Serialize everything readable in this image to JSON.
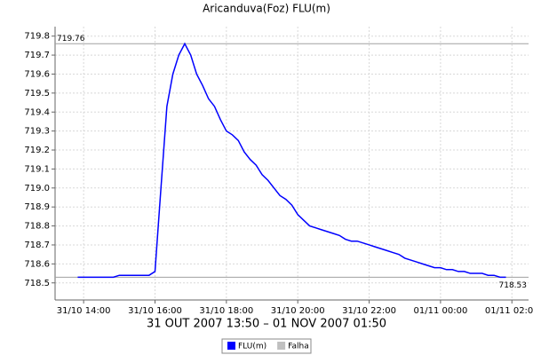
{
  "chart_data": {
    "type": "line",
    "title": "Aricanduva(Foz) FLU(m)",
    "x_label": "31 OUT 2007 13:50 – 01 NOV 2007 01:50",
    "x": [
      "2007-10-31T13:50",
      "2007-10-31T14:00",
      "2007-10-31T14:10",
      "2007-10-31T14:20",
      "2007-10-31T14:30",
      "2007-10-31T14:40",
      "2007-10-31T14:50",
      "2007-10-31T15:00",
      "2007-10-31T15:10",
      "2007-10-31T15:20",
      "2007-10-31T15:30",
      "2007-10-31T15:40",
      "2007-10-31T15:50",
      "2007-10-31T16:00",
      "2007-10-31T16:10",
      "2007-10-31T16:20",
      "2007-10-31T16:30",
      "2007-10-31T16:40",
      "2007-10-31T16:50",
      "2007-10-31T17:00",
      "2007-10-31T17:10",
      "2007-10-31T17:20",
      "2007-10-31T17:30",
      "2007-10-31T17:40",
      "2007-10-31T17:50",
      "2007-10-31T18:00",
      "2007-10-31T18:10",
      "2007-10-31T18:20",
      "2007-10-31T18:30",
      "2007-10-31T18:40",
      "2007-10-31T18:50",
      "2007-10-31T19:00",
      "2007-10-31T19:10",
      "2007-10-31T19:20",
      "2007-10-31T19:30",
      "2007-10-31T19:40",
      "2007-10-31T19:50",
      "2007-10-31T20:00",
      "2007-10-31T20:10",
      "2007-10-31T20:20",
      "2007-10-31T20:30",
      "2007-10-31T20:40",
      "2007-10-31T20:50",
      "2007-10-31T21:00",
      "2007-10-31T21:10",
      "2007-10-31T21:20",
      "2007-10-31T21:30",
      "2007-10-31T21:40",
      "2007-10-31T21:50",
      "2007-10-31T22:00",
      "2007-10-31T22:10",
      "2007-10-31T22:20",
      "2007-10-31T22:30",
      "2007-10-31T22:40",
      "2007-10-31T22:50",
      "2007-10-31T23:00",
      "2007-10-31T23:10",
      "2007-10-31T23:20",
      "2007-10-31T23:30",
      "2007-10-31T23:40",
      "2007-10-31T23:50",
      "2007-11-01T00:00",
      "2007-11-01T00:10",
      "2007-11-01T00:20",
      "2007-11-01T00:30",
      "2007-11-01T00:40",
      "2007-11-01T00:50",
      "2007-11-01T01:00",
      "2007-11-01T01:10",
      "2007-11-01T01:20",
      "2007-11-01T01:30",
      "2007-11-01T01:40",
      "2007-11-01T01:50"
    ],
    "series": [
      {
        "name": "FLU(m)",
        "color": "#0000ff",
        "values": [
          718.53,
          718.53,
          718.53,
          718.53,
          718.53,
          718.53,
          718.53,
          718.54,
          718.54,
          718.54,
          718.54,
          718.54,
          718.54,
          718.56,
          719.0,
          719.43,
          719.6,
          719.7,
          719.76,
          719.7,
          719.6,
          719.54,
          719.47,
          719.43,
          719.36,
          719.3,
          719.28,
          719.25,
          719.19,
          719.15,
          719.12,
          719.07,
          719.04,
          719.0,
          718.96,
          718.94,
          718.91,
          718.86,
          718.83,
          718.8,
          718.79,
          718.78,
          718.77,
          718.76,
          718.75,
          718.73,
          718.72,
          718.72,
          718.71,
          718.7,
          718.69,
          718.68,
          718.67,
          718.66,
          718.65,
          718.63,
          718.62,
          718.61,
          718.6,
          718.59,
          718.58,
          718.58,
          718.57,
          718.57,
          718.56,
          718.56,
          718.55,
          718.55,
          718.55,
          718.54,
          718.54,
          718.53,
          718.53
        ]
      },
      {
        "name": "Falha",
        "color": "#c0c0c0",
        "values": [
          null,
          null,
          null,
          null,
          null,
          null,
          null,
          null,
          null,
          null,
          null,
          null,
          null,
          null,
          null,
          null,
          null,
          null,
          null,
          null,
          null,
          null,
          null,
          null,
          null,
          null,
          null,
          null,
          null,
          null,
          null,
          null,
          null,
          null,
          null,
          null,
          null,
          null,
          null,
          null,
          null,
          null,
          null,
          null,
          null,
          null,
          null,
          null,
          null,
          null,
          null,
          null,
          null,
          null,
          null,
          null,
          null,
          null,
          null,
          null,
          null,
          null,
          null,
          null,
          null,
          null,
          null,
          null,
          null,
          null,
          null,
          null,
          null
        ]
      }
    ],
    "xlim": [
      "2007-10-31T13:12",
      "2007-11-01T02:28"
    ],
    "xticks": [
      {
        "value": "2007-10-31T14:00",
        "label": "31/10 14:00"
      },
      {
        "value": "2007-10-31T16:00",
        "label": "31/10 16:00"
      },
      {
        "value": "2007-10-31T18:00",
        "label": "31/10 18:00"
      },
      {
        "value": "2007-10-31T20:00",
        "label": "31/10 20:00"
      },
      {
        "value": "2007-10-31T22:00",
        "label": "31/10 22:00"
      },
      {
        "value": "2007-11-01T00:00",
        "label": "01/11 00:00"
      },
      {
        "value": "2007-11-01T02:00",
        "label": "01/11 02:00"
      }
    ],
    "ylim": [
      718.41,
      719.85
    ],
    "yticks": [
      718.5,
      718.6,
      718.7,
      718.8,
      718.9,
      {
        "value": 719,
        "label": "719.0"
      },
      719.1,
      719.2,
      719.3,
      719.4,
      719.5,
      719.6,
      719.7,
      719.8
    ],
    "markers": [
      {
        "value": 719.76,
        "label": "719.76",
        "corner": "left"
      },
      {
        "value": 718.53,
        "label": "718.53",
        "corner": "right"
      }
    ],
    "marker_color": "#a0a0a0",
    "grid": true
  }
}
